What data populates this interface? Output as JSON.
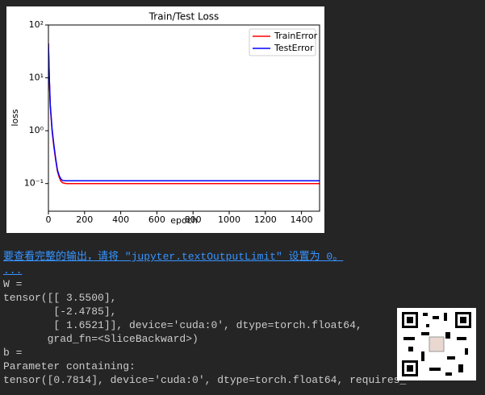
{
  "chart_data": {
    "type": "line",
    "title": "Train/Test Loss",
    "x_label": "epoch",
    "y_label": "loss",
    "x": [
      0,
      5,
      10,
      20,
      30,
      40,
      50,
      60,
      70,
      80,
      100,
      200,
      400,
      600,
      800,
      1000,
      1200,
      1400,
      1500
    ],
    "series": [
      {
        "name": "TrainError",
        "color": "#ff0000",
        "values": [
          45,
          10,
          3,
          1,
          0.5,
          0.28,
          0.17,
          0.13,
          0.11,
          0.103,
          0.1,
          0.1,
          0.1,
          0.1,
          0.1,
          0.1,
          0.1,
          0.1,
          0.1
        ]
      },
      {
        "name": "TestError",
        "color": "#0000ff",
        "values": [
          45,
          10,
          3.2,
          1.1,
          0.55,
          0.3,
          0.18,
          0.14,
          0.12,
          0.114,
          0.113,
          0.113,
          0.113,
          0.113,
          0.113,
          0.113,
          0.113,
          0.113,
          0.113
        ]
      }
    ],
    "xlim": [
      0,
      1500
    ],
    "xticks": [
      0,
      200,
      400,
      600,
      800,
      1000,
      1200,
      1400
    ],
    "ylim": [
      0.03,
      100
    ],
    "log_y": true,
    "yticks": [
      {
        "value": 0.1,
        "label": "10⁻¹"
      },
      {
        "value": 1,
        "label": "10⁰"
      },
      {
        "value": 10,
        "label": "10¹"
      },
      {
        "value": 100,
        "label": "10²"
      }
    ],
    "legend": "upper right"
  },
  "output": {
    "notice": "要查看完整的输出，请将 \"jupyter.textOutputLimit\" 设置为 0。",
    "ellipsis": "...",
    "lines": [
      "W =",
      "tensor([[ 3.5500],",
      "        [-2.4785],",
      "        [ 1.6521]], device='cuda:0', dtype=torch.float64,",
      "       grad_fn=<SliceBackward>)",
      "b =",
      "Parameter containing:",
      "tensor([0.7814], device='cuda:0', dtype=torch.float64, requires_"
    ]
  }
}
